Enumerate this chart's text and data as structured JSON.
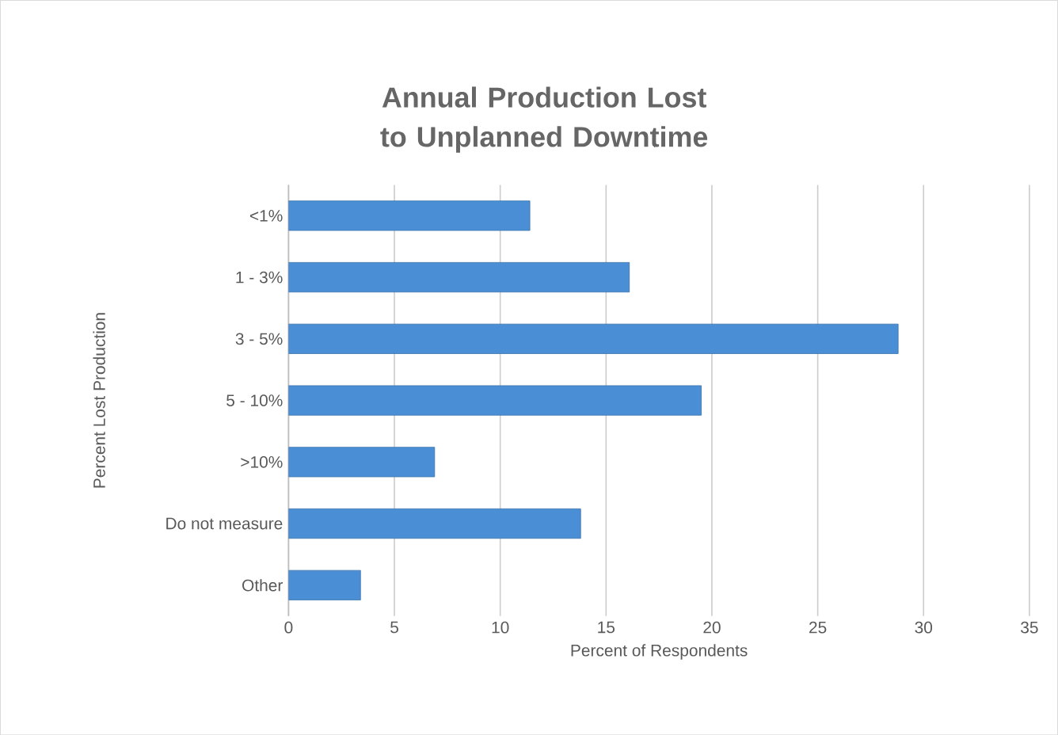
{
  "chart_data": {
    "type": "bar",
    "orientation": "horizontal",
    "title": "Annual Production Lost to Unplanned Downtime",
    "xlabel": "Percent of Respondents",
    "ylabel": "Percent Lost Production",
    "categories": [
      "<1%",
      "1 - 3%",
      "3 - 5%",
      "5 - 10%",
      ">10%",
      "Do not measure",
      "Other"
    ],
    "values": [
      11.4,
      16.1,
      28.8,
      19.5,
      6.9,
      13.8,
      3.4
    ],
    "color": "#4a8fd6",
    "xlim": [
      0,
      35
    ],
    "xticks": [
      0,
      5,
      10,
      15,
      20,
      25,
      30,
      35
    ],
    "grid": "x"
  }
}
